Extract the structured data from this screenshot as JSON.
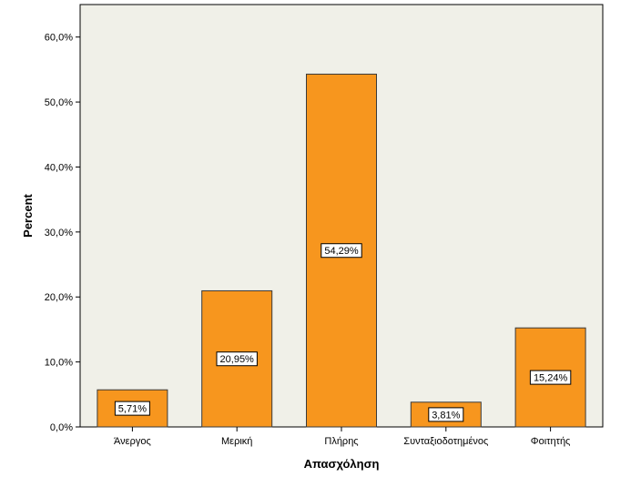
{
  "chart_data": {
    "type": "bar",
    "categories": [
      "Άνεργος",
      "Μερική",
      "Πλήρης",
      "Συνταξιοδοτημένος",
      "Φοιτητής"
    ],
    "values": [
      5.71,
      20.95,
      54.29,
      3.81,
      15.24
    ],
    "data_labels": [
      "5,71%",
      "20,95%",
      "54,29%",
      "3,81%",
      "15,24%"
    ],
    "xlabel": "Απασχόληση",
    "ylabel": "Percent",
    "ylim": [
      0,
      65
    ],
    "yticks": [
      0,
      10,
      20,
      30,
      40,
      50,
      60
    ],
    "ytick_labels": [
      "0,0%",
      "10,0%",
      "20,0%",
      "30,0%",
      "40,0%",
      "50,0%",
      "60,0%"
    ],
    "grid": false,
    "colors": {
      "plot_background": "#f0f0e8",
      "bar_fill": "#f7961e",
      "bar_stroke": "#3a3a3a",
      "label_box": "#ffffff"
    }
  }
}
